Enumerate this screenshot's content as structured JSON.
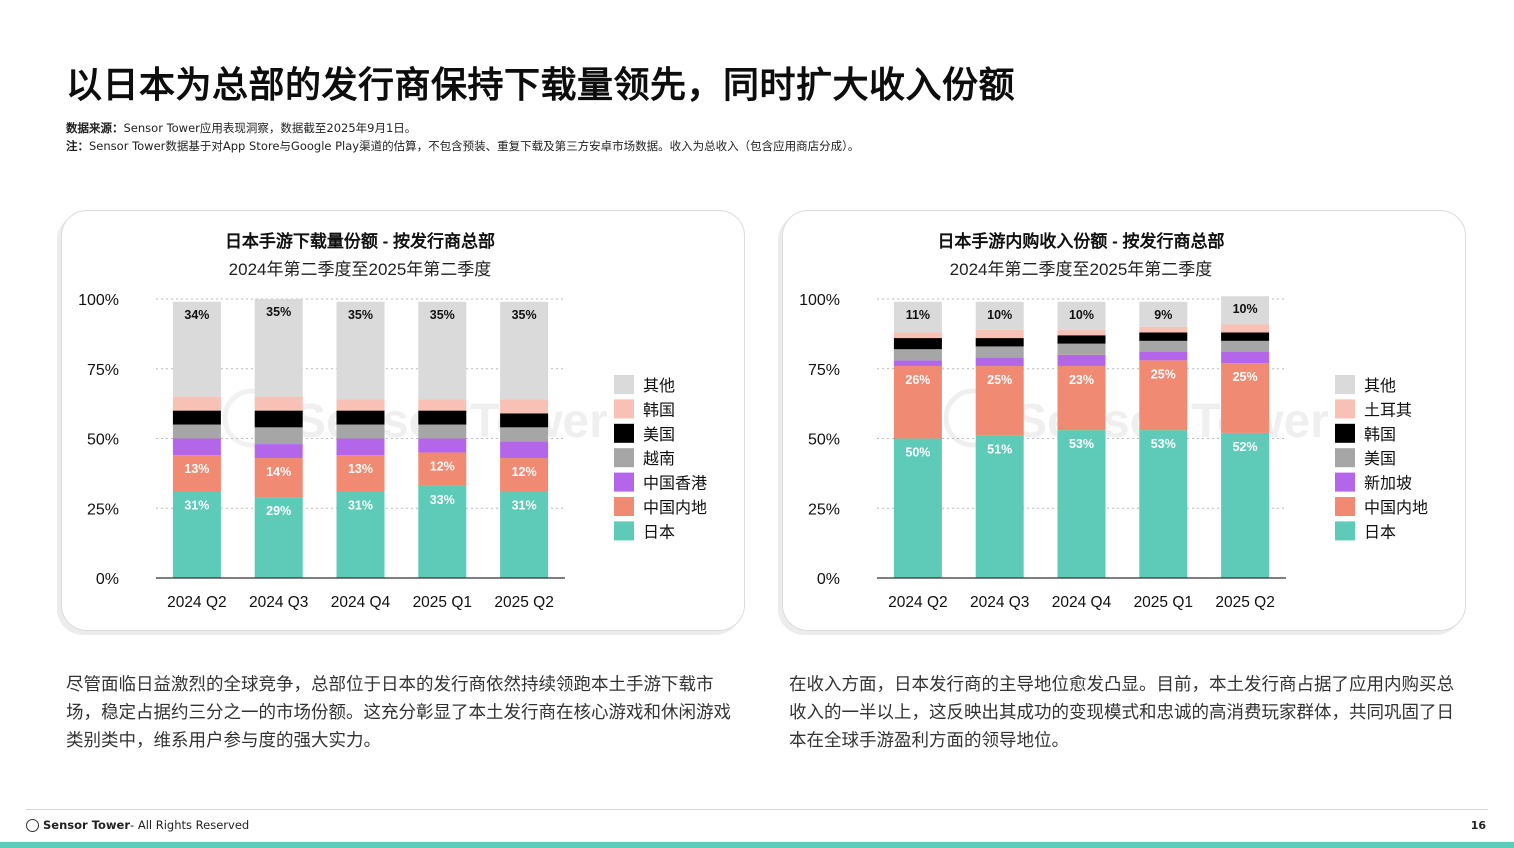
{
  "title": "以日本为总部的发行商保持下载量领先，同时扩大收入份额",
  "notes": {
    "source_label": "数据来源：",
    "source_text": "Sensor Tower应用表现洞察，数据截至2025年9月1日。",
    "note_label": "注：",
    "note_text": "Sensor Tower数据基于对App Store与Google Play渠道的估算，不包含预装、重复下载及第三方安卓市场数据。收入为总收入（包含应用商店分成）。"
  },
  "watermark": "Sensor Tower",
  "colors": {
    "日本": "#5ecab8",
    "中国内地": "#f08a72",
    "中国香港": "#b466ea",
    "越南": "#a6a6a6",
    "美国_left": "#000000",
    "韩国_left": "#f7c1b5",
    "其他": "#dadada",
    "新加坡": "#b466ea",
    "美国_right": "#a6a6a6",
    "韩国_right": "#000000",
    "土耳其": "#f7c1b5"
  },
  "chart_data": [
    {
      "type": "bar",
      "stacked": true,
      "title": "日本手游下载量份额 - 按发行商总部",
      "subtitle": "2024年第二季度至2025年第二季度",
      "categories": [
        "2024 Q2",
        "2024 Q3",
        "2024 Q4",
        "2025 Q1",
        "2025 Q2"
      ],
      "y_ticks": [
        "0%",
        "25%",
        "50%",
        "75%",
        "100%"
      ],
      "ylim": [
        0,
        100
      ],
      "grid": "dotted horizontal",
      "legend_position": "right",
      "legend_order": [
        "其他",
        "韩国",
        "美国",
        "越南",
        "中国香港",
        "中国内地",
        "日本"
      ],
      "series": [
        {
          "name": "日本",
          "color": "#5ecab8",
          "values": [
            31,
            29,
            31,
            33,
            31
          ],
          "labels": [
            "31%",
            "29%",
            "31%",
            "33%",
            "31%"
          ]
        },
        {
          "name": "中国内地",
          "color": "#f08a72",
          "values": [
            13,
            14,
            13,
            12,
            12
          ],
          "labels": [
            "13%",
            "14%",
            "13%",
            "12%",
            "12%"
          ]
        },
        {
          "name": "中国香港",
          "color": "#b466ea",
          "values": [
            6,
            5,
            6,
            5,
            6
          ]
        },
        {
          "name": "越南",
          "color": "#a6a6a6",
          "values": [
            5,
            6,
            5,
            5,
            5
          ]
        },
        {
          "name": "美国",
          "color": "#000000",
          "values": [
            5,
            6,
            5,
            5,
            5
          ]
        },
        {
          "name": "韩国",
          "color": "#f7c1b5",
          "values": [
            5,
            5,
            4,
            4,
            5
          ]
        },
        {
          "name": "其他",
          "color": "#dadada",
          "values": [
            34,
            35,
            35,
            35,
            35
          ],
          "labels": [
            "34%",
            "35%",
            "35%",
            "35%",
            "35%"
          ]
        }
      ]
    },
    {
      "type": "bar",
      "stacked": true,
      "title": "日本手游内购收入份额 - 按发行商总部",
      "subtitle": "2024年第二季度至2025年第二季度",
      "categories": [
        "2024 Q2",
        "2024 Q3",
        "2024 Q4",
        "2025 Q1",
        "2025 Q2"
      ],
      "y_ticks": [
        "0%",
        "25%",
        "50%",
        "75%",
        "100%"
      ],
      "ylim": [
        0,
        100
      ],
      "grid": "dotted horizontal",
      "legend_position": "right",
      "legend_order": [
        "其他",
        "土耳其",
        "韩国",
        "美国",
        "新加坡",
        "中国内地",
        "日本"
      ],
      "series": [
        {
          "name": "日本",
          "color": "#5ecab8",
          "values": [
            50,
            51,
            53,
            53,
            52
          ],
          "labels": [
            "50%",
            "51%",
            "53%",
            "53%",
            "52%"
          ]
        },
        {
          "name": "中国内地",
          "color": "#f08a72",
          "values": [
            26,
            25,
            23,
            25,
            25
          ],
          "labels": [
            "26%",
            "25%",
            "23%",
            "25%",
            "25%"
          ]
        },
        {
          "name": "新加坡",
          "color": "#b466ea",
          "values": [
            2,
            3,
            4,
            3,
            4
          ]
        },
        {
          "name": "美国",
          "color": "#a6a6a6",
          "values": [
            4,
            4,
            4,
            4,
            4
          ]
        },
        {
          "name": "韩国",
          "color": "#000000",
          "values": [
            4,
            3,
            3,
            3,
            3
          ]
        },
        {
          "name": "土耳其",
          "color": "#f7c1b5",
          "values": [
            2,
            3,
            2,
            2,
            3
          ]
        },
        {
          "name": "其他",
          "color": "#dadada",
          "values": [
            11,
            10,
            10,
            9,
            10
          ],
          "labels": [
            "11%",
            "10%",
            "10%",
            "9%",
            "10%"
          ]
        }
      ]
    }
  ],
  "paragraphs": {
    "left": "尽管面临日益激烈的全球竞争，总部位于日本的发行商依然持续领跑本土手游下载市场，稳定占据约三分之一的市场份额。这充分彰显了本土发行商在核心游戏和休闲游戏类别类中，维系用户参与度的强大实力。",
    "right": "在收入方面，日本发行商的主导地位愈发凸显。目前，本土发行商占据了应用内购买总收入的一半以上，这反映出其成功的变现模式和忠诚的高消费玩家群体，共同巩固了日本在全球手游盈利方面的领导地位。"
  },
  "footer": {
    "brand": "Sensor Tower",
    "rights": " - All Rights Reserved",
    "page_number": "16"
  }
}
